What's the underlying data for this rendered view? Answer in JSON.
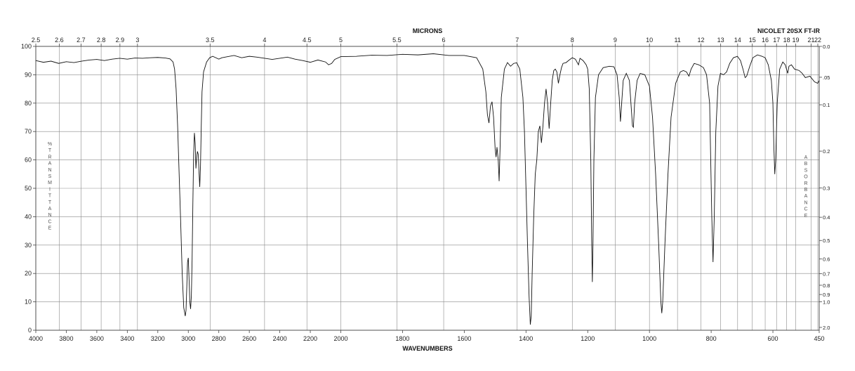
{
  "chart_data": {
    "type": "line",
    "instrument_label": "NICOLET 20SX FT-IR",
    "top_axis_title": "MICRONS",
    "bottom_axis_title": "WAVENUMBERS",
    "left_axis_title": "%TRANSMITTANCE",
    "right_axis_title": "ABSORBANCE",
    "x_range": [
      4000,
      450
    ],
    "x_scale": "piecewise linear: 4000-2000 and 2000-450 at different scales",
    "ylim": [
      0,
      100
    ],
    "grid": true,
    "x_ticks": [
      "4000",
      "3800",
      "3600",
      "3400",
      "3200",
      "3000",
      "2800",
      "2600",
      "2400",
      "2200",
      "2000",
      "1800",
      "1600",
      "1400",
      "1200",
      "1000",
      "800",
      "600",
      "450"
    ],
    "y_ticks": [
      "0",
      "10",
      "20",
      "30",
      "40",
      "50",
      "60",
      "70",
      "80",
      "90",
      "100"
    ],
    "micron_ticks": [
      {
        "label": "2.5",
        "um": 2.5
      },
      {
        "label": "2.6",
        "um": 2.6
      },
      {
        "label": "2.7",
        "um": 2.7
      },
      {
        "label": "2.8",
        "um": 2.8
      },
      {
        "label": "2.9",
        "um": 2.9
      },
      {
        "label": "3",
        "um": 3.0
      },
      {
        "label": "3.5",
        "um": 3.5
      },
      {
        "label": "4",
        "um": 4.0
      },
      {
        "label": "4.5",
        "um": 4.5
      },
      {
        "label": "5",
        "um": 5.0
      },
      {
        "label": "5.5",
        "um": 5.5
      },
      {
        "label": "6",
        "um": 6.0
      },
      {
        "label": "7",
        "um": 7.0
      },
      {
        "label": "8",
        "um": 8.0
      },
      {
        "label": "9",
        "um": 9.0
      },
      {
        "label": "10",
        "um": 10.0
      },
      {
        "label": "11",
        "um": 11.0
      },
      {
        "label": "12",
        "um": 12.0
      },
      {
        "label": "13",
        "um": 13.0
      },
      {
        "label": "14",
        "um": 14.0
      },
      {
        "label": "15",
        "um": 15.0
      },
      {
        "label": "16",
        "um": 16.0
      },
      {
        "label": "17",
        "um": 17.0
      },
      {
        "label": "18",
        "um": 18.0
      },
      {
        "label": "19",
        "um": 19.0
      },
      {
        "label": "21",
        "um": 21.0
      },
      {
        "label": "22",
        "um": 22.0
      }
    ],
    "absorbance_ticks": [
      {
        "label": "0.0",
        "a": 0.0
      },
      {
        "label": ".05",
        "a": 0.05
      },
      {
        "label": "0.1",
        "a": 0.1
      },
      {
        "label": "0.2",
        "a": 0.2
      },
      {
        "label": "0.3",
        "a": 0.3
      },
      {
        "label": "0.4",
        "a": 0.4
      },
      {
        "label": "0.5",
        "a": 0.5
      },
      {
        "label": "0.6",
        "a": 0.6
      },
      {
        "label": "0.7",
        "a": 0.7
      },
      {
        "label": "0.8",
        "a": 0.8
      },
      {
        "label": "0.9",
        "a": 0.9
      },
      {
        "label": "1.0",
        "a": 1.0
      },
      {
        "label": "2.0",
        "a": 2.0
      }
    ],
    "series": [
      {
        "points": [
          [
            4000,
            95.0
          ],
          [
            3950,
            94.4
          ],
          [
            3900,
            94.8
          ],
          [
            3850,
            94.0
          ],
          [
            3800,
            94.6
          ],
          [
            3750,
            94.3
          ],
          [
            3700,
            94.8
          ],
          [
            3650,
            95.2
          ],
          [
            3600,
            95.4
          ],
          [
            3550,
            95.0
          ],
          [
            3500,
            95.5
          ],
          [
            3450,
            95.8
          ],
          [
            3400,
            95.5
          ],
          [
            3350,
            95.9
          ],
          [
            3300,
            95.8
          ],
          [
            3250,
            96.0
          ],
          [
            3200,
            96.1
          ],
          [
            3150,
            95.9
          ],
          [
            3120,
            95.6
          ],
          [
            3100,
            94.5
          ],
          [
            3090,
            92.0
          ],
          [
            3080,
            85.0
          ],
          [
            3070,
            72.0
          ],
          [
            3060,
            55.0
          ],
          [
            3050,
            38.0
          ],
          [
            3040,
            20.0
          ],
          [
            3030,
            8.0
          ],
          [
            3020,
            5.0
          ],
          [
            3015,
            7.0
          ],
          [
            3010,
            15.0
          ],
          [
            3005,
            24.0
          ],
          [
            3000,
            25.5
          ],
          [
            2995,
            18.0
          ],
          [
            2990,
            10.0
          ],
          [
            2985,
            7.5
          ],
          [
            2980,
            12.0
          ],
          [
            2975,
            25.0
          ],
          [
            2970,
            45.0
          ],
          [
            2965,
            62.0
          ],
          [
            2960,
            69.5
          ],
          [
            2955,
            66.0
          ],
          [
            2950,
            57.0
          ],
          [
            2945,
            61.0
          ],
          [
            2940,
            63.0
          ],
          [
            2935,
            62.0
          ],
          [
            2930,
            56.0
          ],
          [
            2925,
            50.5
          ],
          [
            2920,
            58.0
          ],
          [
            2915,
            72.0
          ],
          [
            2910,
            84.0
          ],
          [
            2900,
            91.0
          ],
          [
            2880,
            94.5
          ],
          [
            2860,
            96.0
          ],
          [
            2840,
            96.5
          ],
          [
            2800,
            95.5
          ],
          [
            2780,
            96.0
          ],
          [
            2750,
            96.3
          ],
          [
            2700,
            96.8
          ],
          [
            2650,
            96.0
          ],
          [
            2600,
            96.5
          ],
          [
            2550,
            96.2
          ],
          [
            2500,
            95.8
          ],
          [
            2450,
            95.4
          ],
          [
            2400,
            95.8
          ],
          [
            2350,
            96.2
          ],
          [
            2300,
            95.5
          ],
          [
            2250,
            95.0
          ],
          [
            2200,
            94.4
          ],
          [
            2150,
            95.2
          ],
          [
            2100,
            94.5
          ],
          [
            2080,
            93.5
          ],
          [
            2060,
            94.0
          ],
          [
            2040,
            95.4
          ],
          [
            2000,
            96.4
          ],
          [
            1950,
            96.5
          ],
          [
            1900,
            96.9
          ],
          [
            1850,
            96.8
          ],
          [
            1800,
            97.2
          ],
          [
            1750,
            97.0
          ],
          [
            1700,
            97.4
          ],
          [
            1650,
            96.8
          ],
          [
            1600,
            96.8
          ],
          [
            1560,
            96.0
          ],
          [
            1540,
            92.0
          ],
          [
            1530,
            84.0
          ],
          [
            1525,
            76.0
          ],
          [
            1520,
            73.0
          ],
          [
            1515,
            79.0
          ],
          [
            1510,
            80.5
          ],
          [
            1505,
            75.0
          ],
          [
            1500,
            64.0
          ],
          [
            1497,
            61.0
          ],
          [
            1494,
            64.5
          ],
          [
            1490,
            60.0
          ],
          [
            1487,
            52.5
          ],
          [
            1484,
            64.0
          ],
          [
            1480,
            82.0
          ],
          [
            1470,
            92.0
          ],
          [
            1460,
            94.3
          ],
          [
            1450,
            93.0
          ],
          [
            1440,
            94.0
          ],
          [
            1430,
            94.2
          ],
          [
            1420,
            92.0
          ],
          [
            1410,
            82.0
          ],
          [
            1405,
            70.0
          ],
          [
            1400,
            50.0
          ],
          [
            1395,
            30.0
          ],
          [
            1390,
            12.0
          ],
          [
            1386,
            2.0
          ],
          [
            1383,
            5.0
          ],
          [
            1380,
            20.0
          ],
          [
            1375,
            40.0
          ],
          [
            1370,
            55.0
          ],
          [
            1365,
            60.0
          ],
          [
            1360,
            70.0
          ],
          [
            1355,
            72.0
          ],
          [
            1350,
            66.0
          ],
          [
            1345,
            72.0
          ],
          [
            1340,
            80.0
          ],
          [
            1335,
            85.0
          ],
          [
            1330,
            80.0
          ],
          [
            1325,
            71.0
          ],
          [
            1320,
            80.0
          ],
          [
            1315,
            88.0
          ],
          [
            1310,
            91.5
          ],
          [
            1305,
            92.0
          ],
          [
            1300,
            91.0
          ],
          [
            1295,
            87.0
          ],
          [
            1290,
            90.0
          ],
          [
            1285,
            92.5
          ],
          [
            1280,
            94.0
          ],
          [
            1270,
            94.3
          ],
          [
            1260,
            95.2
          ],
          [
            1250,
            96.0
          ],
          [
            1240,
            95.5
          ],
          [
            1230,
            93.5
          ],
          [
            1225,
            95.8
          ],
          [
            1215,
            95.0
          ],
          [
            1205,
            93.5
          ],
          [
            1200,
            92.0
          ],
          [
            1195,
            85.0
          ],
          [
            1190,
            60.0
          ],
          [
            1187,
            30.0
          ],
          [
            1185,
            17.0
          ],
          [
            1183,
            30.0
          ],
          [
            1180,
            60.0
          ],
          [
            1175,
            82.0
          ],
          [
            1165,
            90.0
          ],
          [
            1150,
            92.5
          ],
          [
            1130,
            93.0
          ],
          [
            1115,
            92.8
          ],
          [
            1105,
            90.0
          ],
          [
            1098,
            82.0
          ],
          [
            1094,
            73.5
          ],
          [
            1090,
            80.0
          ],
          [
            1085,
            88.0
          ],
          [
            1075,
            90.5
          ],
          [
            1065,
            88.0
          ],
          [
            1060,
            80.0
          ],
          [
            1055,
            72.0
          ],
          [
            1052,
            71.5
          ],
          [
            1048,
            80.0
          ],
          [
            1040,
            88.0
          ],
          [
            1030,
            90.5
          ],
          [
            1015,
            90.0
          ],
          [
            1000,
            86.0
          ],
          [
            990,
            75.0
          ],
          [
            980,
            55.0
          ],
          [
            970,
            30.0
          ],
          [
            963,
            10.0
          ],
          [
            960,
            6.0
          ],
          [
            957,
            10.0
          ],
          [
            950,
            30.0
          ],
          [
            940,
            55.0
          ],
          [
            930,
            75.0
          ],
          [
            915,
            87.0
          ],
          [
            900,
            91.0
          ],
          [
            890,
            91.5
          ],
          [
            880,
            91.0
          ],
          [
            872,
            89.5
          ],
          [
            865,
            92.0
          ],
          [
            855,
            94.0
          ],
          [
            840,
            93.5
          ],
          [
            825,
            92.5
          ],
          [
            815,
            90.0
          ],
          [
            805,
            80.0
          ],
          [
            798,
            40.0
          ],
          [
            794,
            24.0
          ],
          [
            790,
            40.0
          ],
          [
            785,
            70.0
          ],
          [
            778,
            86.0
          ],
          [
            770,
            90.5
          ],
          [
            760,
            90.0
          ],
          [
            750,
            91.0
          ],
          [
            740,
            94.0
          ],
          [
            728,
            96.0
          ],
          [
            715,
            96.5
          ],
          [
            705,
            95.0
          ],
          [
            697,
            92.0
          ],
          [
            690,
            89.0
          ],
          [
            685,
            89.5
          ],
          [
            675,
            93.0
          ],
          [
            665,
            96.0
          ],
          [
            650,
            97.0
          ],
          [
            635,
            96.5
          ],
          [
            625,
            96.0
          ],
          [
            615,
            93.5
          ],
          [
            605,
            88.0
          ],
          [
            600,
            80.0
          ],
          [
            597,
            65.0
          ],
          [
            594,
            55.0
          ],
          [
            591,
            60.0
          ],
          [
            586,
            80.0
          ],
          [
            578,
            92.0
          ],
          [
            568,
            94.5
          ],
          [
            560,
            93.5
          ],
          [
            556,
            92.0
          ],
          [
            552,
            90.5
          ],
          [
            548,
            93.0
          ],
          [
            540,
            93.5
          ],
          [
            530,
            92.0
          ],
          [
            515,
            91.5
          ],
          [
            505,
            90.5
          ],
          [
            495,
            89.0
          ],
          [
            480,
            89.5
          ],
          [
            465,
            87.5
          ],
          [
            455,
            87.0
          ],
          [
            450,
            88.0
          ]
        ]
      }
    ]
  }
}
